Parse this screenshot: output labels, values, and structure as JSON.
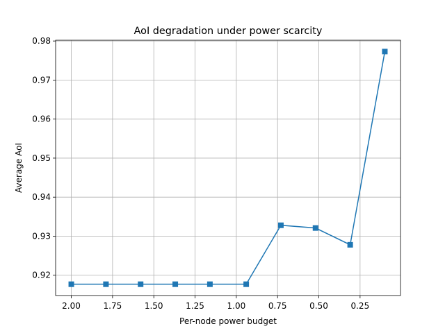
{
  "chart_data": {
    "type": "line",
    "title": "AoI degradation under power scarcity",
    "x_label": "Per-node power budget",
    "y_label": "Average AoI",
    "x": [
      2.0,
      1.79,
      1.58,
      1.37,
      1.16,
      0.94,
      0.73,
      0.52,
      0.31,
      0.1
    ],
    "series": [
      {
        "color": "#1f77b4",
        "marker": "square",
        "values": [
          0.9177,
          0.9177,
          0.9177,
          0.9177,
          0.9177,
          0.9177,
          0.9328,
          0.9321,
          0.9278,
          0.9773
        ]
      }
    ],
    "xlim": [
      2.095,
      0.005
    ],
    "xticks": [
      {
        "value": 2.0,
        "label": "2.00"
      },
      {
        "value": 1.75,
        "label": "1.75"
      },
      {
        "value": 1.5,
        "label": "1.50"
      },
      {
        "value": 1.25,
        "label": "1.25"
      },
      {
        "value": 1.0,
        "label": "1.00"
      },
      {
        "value": 0.75,
        "label": "0.75"
      },
      {
        "value": 0.5,
        "label": "0.50"
      },
      {
        "value": 0.25,
        "label": "0.25"
      }
    ],
    "ylim": [
      0.9148,
      0.9802
    ],
    "yticks": [
      0.92,
      0.93,
      0.94,
      0.95,
      0.96,
      0.97,
      0.98
    ],
    "grid": true
  }
}
